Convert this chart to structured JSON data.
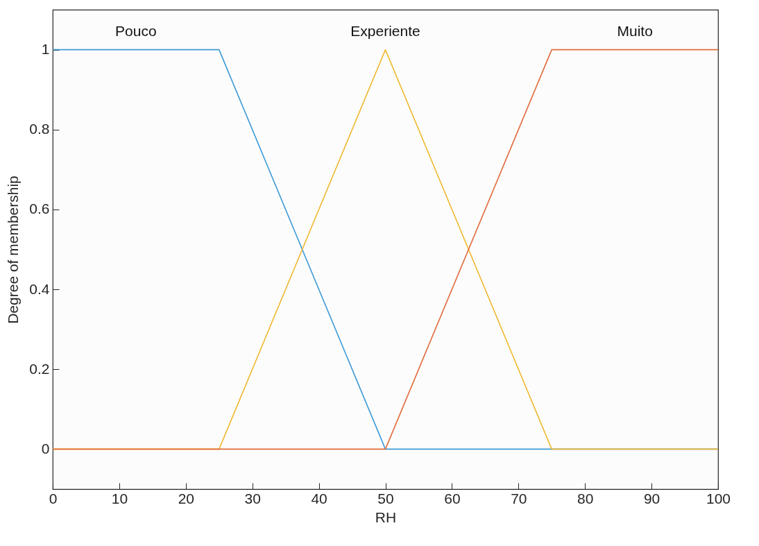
{
  "chart_data": {
    "type": "line",
    "xlabel": "RH",
    "ylabel": "Degree of membership",
    "xlim": [
      0,
      100
    ],
    "xticks": [
      0,
      10,
      20,
      30,
      40,
      50,
      60,
      70,
      80,
      90,
      100
    ],
    "ylim": [
      -0.1,
      1.1
    ],
    "yticks": [
      0,
      0.2,
      0.4,
      0.6,
      0.8,
      1
    ],
    "grid": false,
    "legend": false,
    "marker": "none",
    "line_style": "solid",
    "series": [
      {
        "name": "Pouco",
        "color": "#3d9ad6",
        "x": [
          0,
          25,
          50,
          100
        ],
        "values": [
          1,
          1,
          0,
          0
        ]
      },
      {
        "name": "Experiente",
        "color": "#f0b830",
        "x": [
          0,
          25,
          50,
          75,
          100
        ],
        "values": [
          0,
          0,
          1,
          0,
          0
        ]
      },
      {
        "name": "Muito",
        "color": "#e06a3b",
        "x": [
          0,
          50,
          75,
          100
        ],
        "values": [
          0,
          0,
          1,
          1
        ]
      }
    ]
  }
}
